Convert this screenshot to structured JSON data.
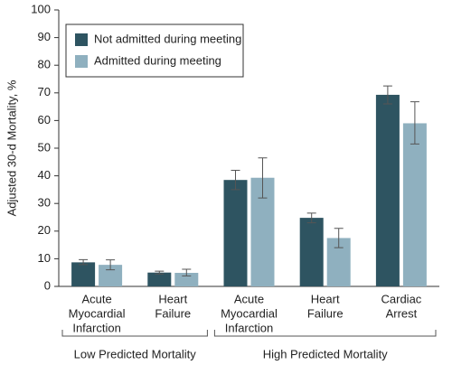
{
  "chart_data": {
    "type": "bar",
    "y_label": "Adjusted 30-d Mortality, %",
    "groups": [
      {
        "name": "Low Predicted Mortality",
        "categories": [
          [
            "Acute",
            "Myocardial",
            "Infarction"
          ],
          [
            "Heart",
            "Failure"
          ]
        ]
      },
      {
        "name": "High Predicted Mortality",
        "categories": [
          [
            "Acute",
            "Myocardial",
            "Infarction"
          ],
          [
            "Heart",
            "Failure"
          ],
          [
            "Cardiac",
            "Arrest"
          ]
        ]
      }
    ],
    "series": [
      {
        "name": "Not admitted during meeting",
        "color": "#2e5461",
        "values": [
          8.7,
          5.0,
          38.5,
          24.8,
          69.3
        ],
        "ci_low": [
          7.9,
          4.5,
          35.0,
          23.0,
          66.0
        ],
        "ci_high": [
          9.7,
          5.5,
          42.0,
          26.5,
          72.5
        ]
      },
      {
        "name": "Admitted during meeting",
        "color": "#8fb0bf",
        "values": [
          7.8,
          4.9,
          39.3,
          17.5,
          59.0
        ],
        "ci_low": [
          6.0,
          3.8,
          32.0,
          14.0,
          51.5
        ],
        "ci_high": [
          9.6,
          6.2,
          46.5,
          21.0,
          66.8
        ]
      }
    ],
    "ylim": [
      0,
      100
    ],
    "yticks": [
      0,
      10,
      20,
      30,
      40,
      50,
      60,
      70,
      80,
      90,
      100
    ]
  }
}
